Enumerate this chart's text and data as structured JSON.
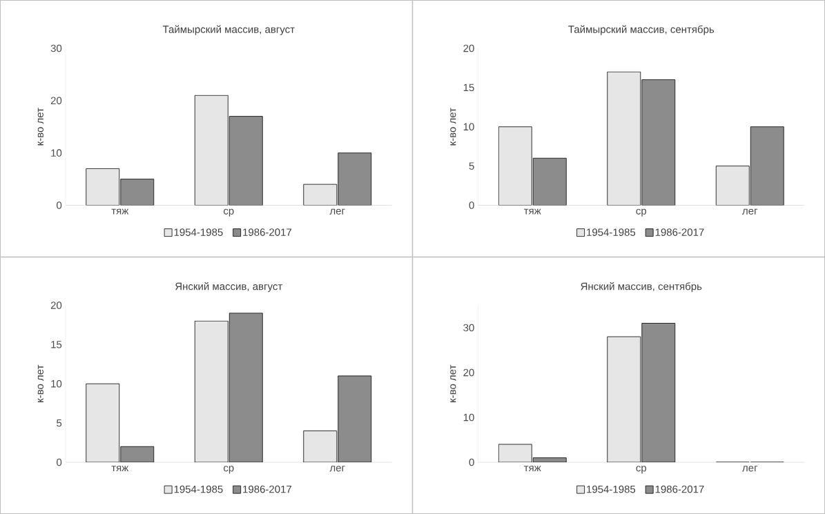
{
  "chart_data": [
    {
      "type": "bar",
      "title": "Таймырский массив, август",
      "ylabel": "к-во лет",
      "categories": [
        "тяж",
        "ср",
        "лег"
      ],
      "series": [
        {
          "name": "1954-1985",
          "color": "#e6e6e6",
          "values": [
            7,
            21,
            4
          ]
        },
        {
          "name": "1986-2017",
          "color": "#8c8c8c",
          "values": [
            5,
            17,
            10
          ]
        }
      ],
      "ylim": [
        0,
        30
      ],
      "yticks": [
        0,
        10,
        20,
        30
      ],
      "legend": "bottom"
    },
    {
      "type": "bar",
      "title": "Таймырский массив, сентябрь",
      "ylabel": "к-во лет",
      "categories": [
        "тяж",
        "ср",
        "лег"
      ],
      "series": [
        {
          "name": "1954-1985",
          "color": "#e6e6e6",
          "values": [
            10,
            17,
            5
          ]
        },
        {
          "name": "1986-2017",
          "color": "#8c8c8c",
          "values": [
            6,
            16,
            10
          ]
        }
      ],
      "ylim": [
        0,
        20
      ],
      "yticks": [
        0,
        5,
        10,
        15,
        20
      ],
      "legend": "bottom"
    },
    {
      "type": "bar",
      "title": "Янский массив, август",
      "ylabel": "к-во лет",
      "categories": [
        "тяж",
        "ср",
        "лег"
      ],
      "series": [
        {
          "name": "1954-1985",
          "color": "#e6e6e6",
          "values": [
            10,
            18,
            4
          ]
        },
        {
          "name": "1986-2017",
          "color": "#8c8c8c",
          "values": [
            2,
            19,
            11
          ]
        }
      ],
      "ylim": [
        0,
        20
      ],
      "yticks": [
        0,
        5,
        10,
        15,
        20
      ],
      "legend": "bottom"
    },
    {
      "type": "bar",
      "title": "Янский массив, сентябрь",
      "ylabel": "к-во лет",
      "categories": [
        "тяж",
        "ср",
        "лег"
      ],
      "series": [
        {
          "name": "1954-1985",
          "color": "#e6e6e6",
          "values": [
            4,
            28,
            0
          ]
        },
        {
          "name": "1986-2017",
          "color": "#8c8c8c",
          "values": [
            1,
            31,
            0
          ]
        }
      ],
      "ylim": [
        0,
        35
      ],
      "yticks": [
        0,
        10,
        20,
        30
      ],
      "legend": "bottom"
    }
  ]
}
